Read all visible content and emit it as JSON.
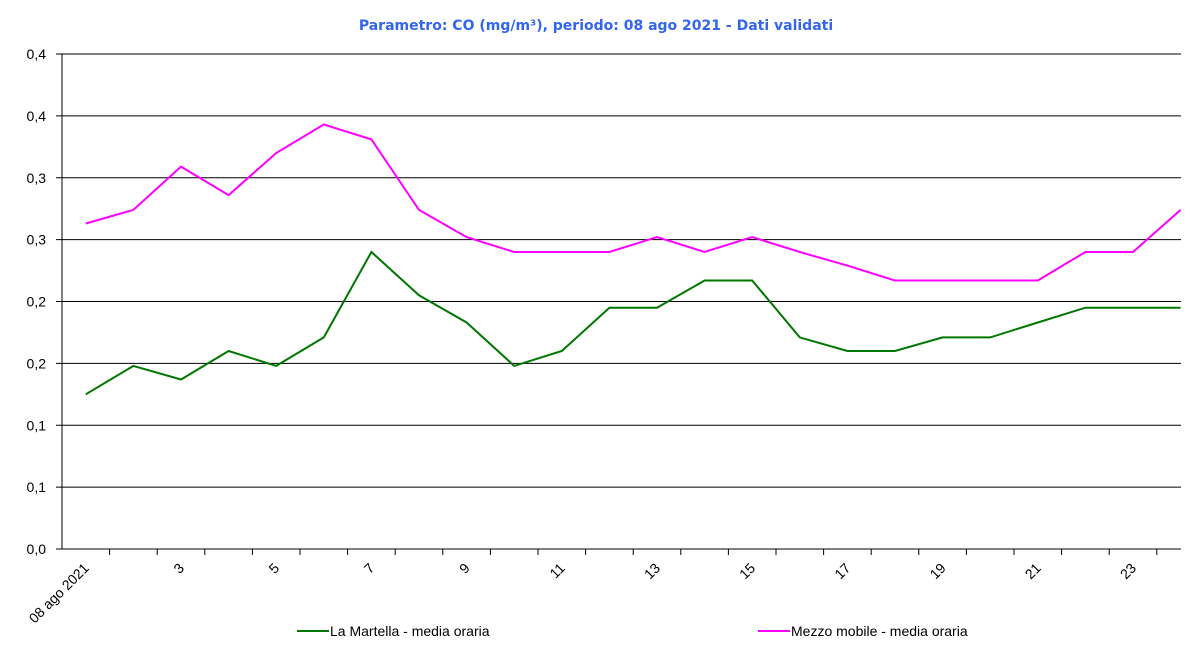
{
  "chart_data": {
    "type": "line",
    "title": "Parametro: CO (mg/m³), periodo: 08 ago 2021 - Dati validati",
    "categories": [
      "08 ago 2021",
      null,
      "3",
      null,
      "5",
      null,
      "7",
      null,
      "9",
      null,
      "11",
      null,
      "13",
      null,
      "15",
      null,
      "17",
      null,
      "19",
      null,
      "21",
      null,
      "23",
      null
    ],
    "series": [
      {
        "name": "La Martella - media oraria",
        "color": "#007700",
        "values": [
          0.125,
          0.148,
          0.137,
          0.16,
          0.148,
          0.171,
          0.24,
          0.205,
          0.183,
          0.148,
          0.16,
          0.195,
          0.195,
          0.217,
          0.217,
          0.171,
          0.16,
          0.16,
          0.171,
          0.171,
          0.183,
          0.195,
          0.195,
          0.195
        ]
      },
      {
        "name": "Mezzo mobile - media oraria",
        "color": "#ff00ff",
        "values": [
          0.263,
          0.274,
          0.309,
          0.286,
          0.32,
          0.343,
          0.331,
          0.274,
          0.252,
          0.24,
          0.24,
          0.24,
          0.252,
          0.24,
          0.252,
          0.24,
          0.229,
          0.217,
          0.217,
          0.217,
          0.217,
          0.24,
          0.24,
          0.274
        ]
      }
    ],
    "ylim": [
      0,
      0.4
    ],
    "yticks": [
      {
        "value": 0,
        "label": "0,0"
      },
      {
        "value": 0.05,
        "label": "0,1"
      },
      {
        "value": 0.1,
        "label": "0,1"
      },
      {
        "value": 0.15,
        "label": "0,2"
      },
      {
        "value": 0.2,
        "label": "0,2"
      },
      {
        "value": 0.25,
        "label": "0,3"
      },
      {
        "value": 0.3,
        "label": "0,3"
      },
      {
        "value": 0.35,
        "label": "0,4"
      },
      {
        "value": 0.4,
        "label": "0,4"
      }
    ],
    "grid": true
  }
}
